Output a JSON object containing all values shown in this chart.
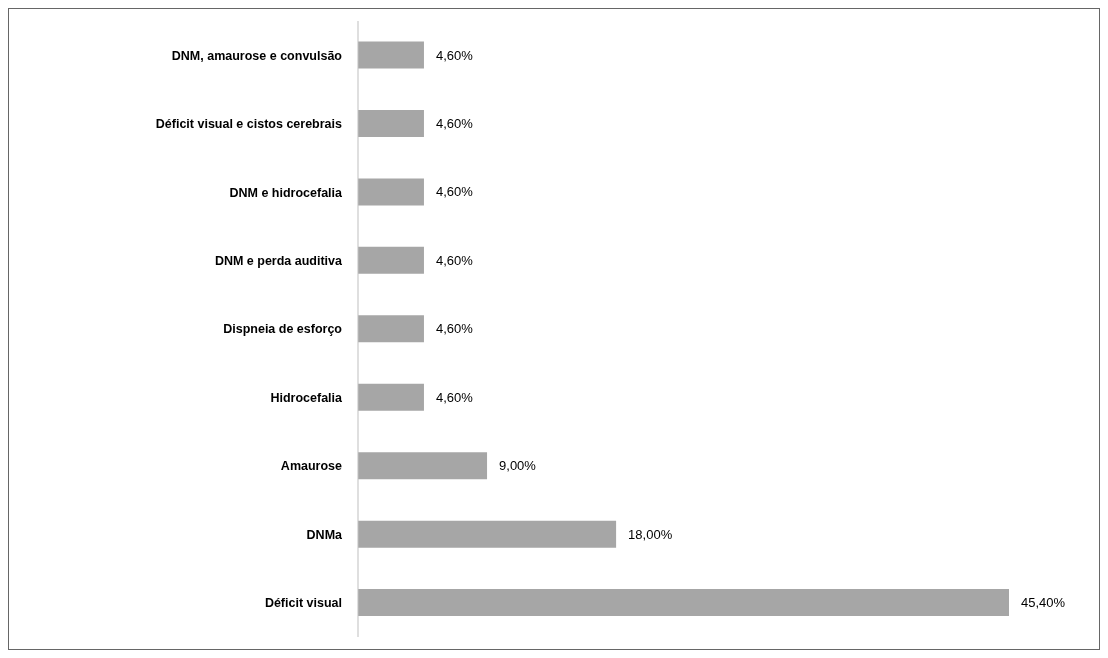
{
  "chart_data": {
    "type": "bar",
    "orientation": "horizontal",
    "categories": [
      "DNM, amaurose e convulsão",
      "Déficit visual e cistos cerebrais",
      "DNM e hidrocefalia",
      "DNM e perda auditiva",
      "Dispneia de esforço",
      "Hidrocefalia",
      "Amaurose",
      "DNMa",
      "Déficit visual"
    ],
    "values": [
      4.6,
      4.6,
      4.6,
      4.6,
      4.6,
      4.6,
      9.0,
      18.0,
      45.4
    ],
    "value_labels": [
      "4,60%",
      "4,60%",
      "4,60%",
      "4,60%",
      "4,60%",
      "4,60%",
      "9,00%",
      "18,00%",
      "45,40%"
    ],
    "color": "#a6a6a6"
  }
}
